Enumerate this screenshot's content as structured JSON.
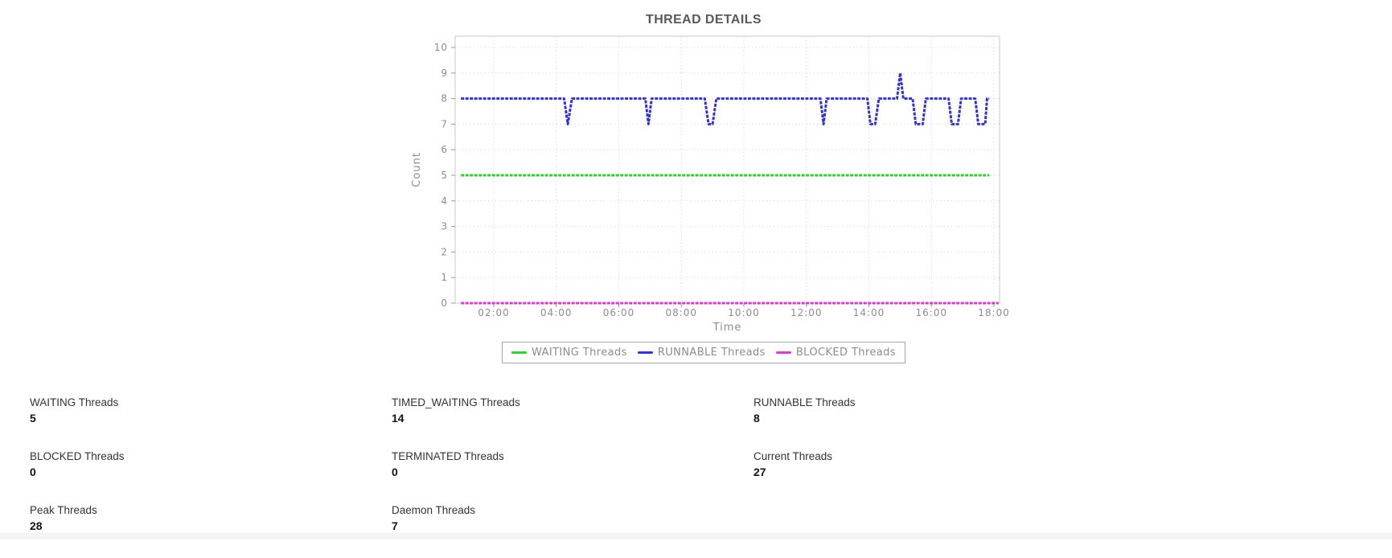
{
  "chart_data": {
    "type": "line",
    "title": "THREAD DETAILS",
    "xlabel": "Time",
    "ylabel": "Count",
    "x_unit": "hours",
    "xlim": [
      0.76,
      18.18
    ],
    "ylim": [
      0,
      10.4
    ],
    "yticks": [
      0,
      1,
      2,
      3,
      4,
      5,
      6,
      7,
      8,
      9,
      10
    ],
    "xtick_hours": [
      2,
      4,
      6,
      8,
      10,
      12,
      14,
      16,
      18
    ],
    "xtick_labels": [
      "02:00",
      "04:00",
      "06:00",
      "08:00",
      "10:00",
      "12:00",
      "14:00",
      "16:00",
      "18:00"
    ],
    "grid": true,
    "legend_position": "bottom",
    "colors": {
      "grid": "#dcdcdc",
      "axis_text": "#8c8c8c",
      "title": "#595959",
      "plot_border": "#c8c8c8",
      "tick": "#999999"
    },
    "series": [
      {
        "name": "WAITING Threads",
        "color": "#33cc33",
        "points": [
          [
            0.95,
            5
          ],
          [
            17.85,
            5
          ]
        ]
      },
      {
        "name": "RUNNABLE Threads",
        "color": "#3434cd",
        "points": [
          [
            0.95,
            8
          ],
          [
            4.25,
            8
          ],
          [
            4.37,
            7
          ],
          [
            4.5,
            8
          ],
          [
            6.85,
            8
          ],
          [
            6.95,
            7
          ],
          [
            7.05,
            8
          ],
          [
            8.75,
            8
          ],
          [
            8.87,
            7
          ],
          [
            9.0,
            7
          ],
          [
            9.12,
            8
          ],
          [
            12.45,
            8
          ],
          [
            12.55,
            7
          ],
          [
            12.65,
            8
          ],
          [
            13.95,
            8
          ],
          [
            14.05,
            7
          ],
          [
            14.2,
            7
          ],
          [
            14.32,
            8
          ],
          [
            14.9,
            8
          ],
          [
            15.0,
            9
          ],
          [
            15.1,
            8
          ],
          [
            15.4,
            8
          ],
          [
            15.5,
            7
          ],
          [
            15.72,
            7
          ],
          [
            15.82,
            8
          ],
          [
            16.55,
            8
          ],
          [
            16.65,
            7
          ],
          [
            16.85,
            7
          ],
          [
            16.95,
            8
          ],
          [
            17.4,
            8
          ],
          [
            17.5,
            7
          ],
          [
            17.72,
            7
          ],
          [
            17.78,
            8
          ],
          [
            17.85,
            8
          ]
        ]
      },
      {
        "name": "BLOCKED Threads",
        "color": "#cc44cc",
        "points": [
          [
            0.95,
            0
          ],
          [
            18.15,
            0
          ]
        ]
      }
    ]
  },
  "stats": [
    {
      "label": "WAITING Threads",
      "value": "5"
    },
    {
      "label": "TIMED_WAITING Threads",
      "value": "14"
    },
    {
      "label": "RUNNABLE Threads",
      "value": "8"
    },
    {
      "label": "BLOCKED Threads",
      "value": "0"
    },
    {
      "label": "TERMINATED Threads",
      "value": "0"
    },
    {
      "label": "Current Threads",
      "value": "27"
    },
    {
      "label": "Peak Threads",
      "value": "28"
    },
    {
      "label": "Daemon Threads",
      "value": "7"
    }
  ]
}
